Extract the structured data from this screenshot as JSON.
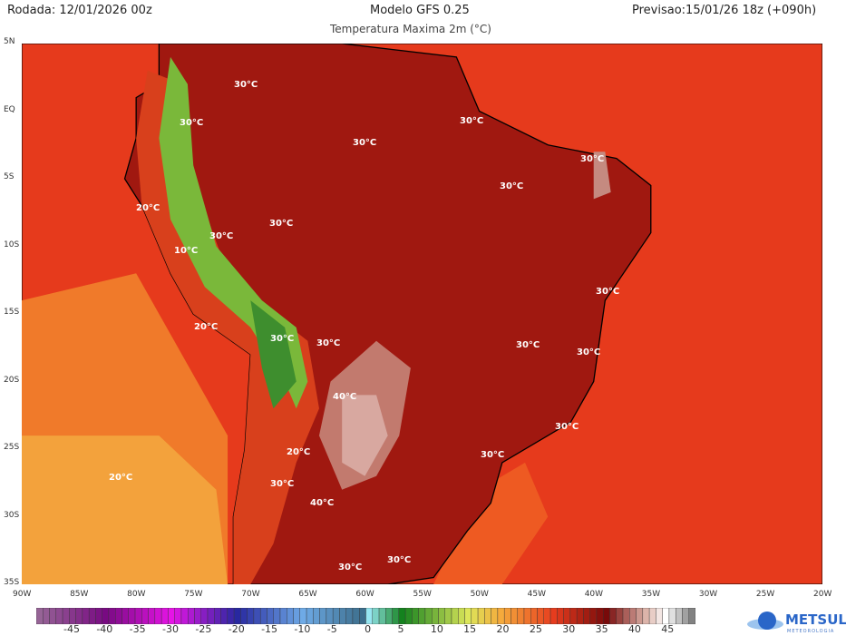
{
  "header": {
    "run": "Rodada: 12/01/2026 00z",
    "model": "Modelo GFS 0.25",
    "forecast": "Previsao:15/01/26 18z (+090h)",
    "subtitle": "Temperatura Maxima 2m (°C)"
  },
  "lat_ticks": [
    "5N",
    "EQ",
    "5S",
    "10S",
    "15S",
    "20S",
    "25S",
    "30S",
    "35S"
  ],
  "lon_ticks": [
    "90W",
    "85W",
    "80W",
    "75W",
    "70W",
    "65W",
    "60W",
    "55W",
    "50W",
    "45W",
    "40W",
    "35W",
    "30W",
    "25W",
    "20W"
  ],
  "contour_labels": [
    "30°C",
    "30°C",
    "30°C",
    "30°C",
    "30°C",
    "30°C",
    "30°C",
    "30°C",
    "30°C",
    "30°C",
    "30°C",
    "30°C",
    "30°C",
    "30°C",
    "40°C",
    "40°C",
    "20°C",
    "20°C",
    "20°C",
    "20°C",
    "10°C",
    "30°C",
    "30°C",
    "30°C",
    "30°C"
  ],
  "colorbar": {
    "labels": [
      "-45",
      "-40",
      "-35",
      "-30",
      "-25",
      "-20",
      "-15",
      "-10",
      "-5",
      "0",
      "5",
      "10",
      "15",
      "20",
      "25",
      "30",
      "35",
      "40",
      "45"
    ],
    "min": -50,
    "max": 49,
    "unit": "°C"
  },
  "logo": {
    "name": "METSUL",
    "sub": "METEOROLOGIA"
  }
}
